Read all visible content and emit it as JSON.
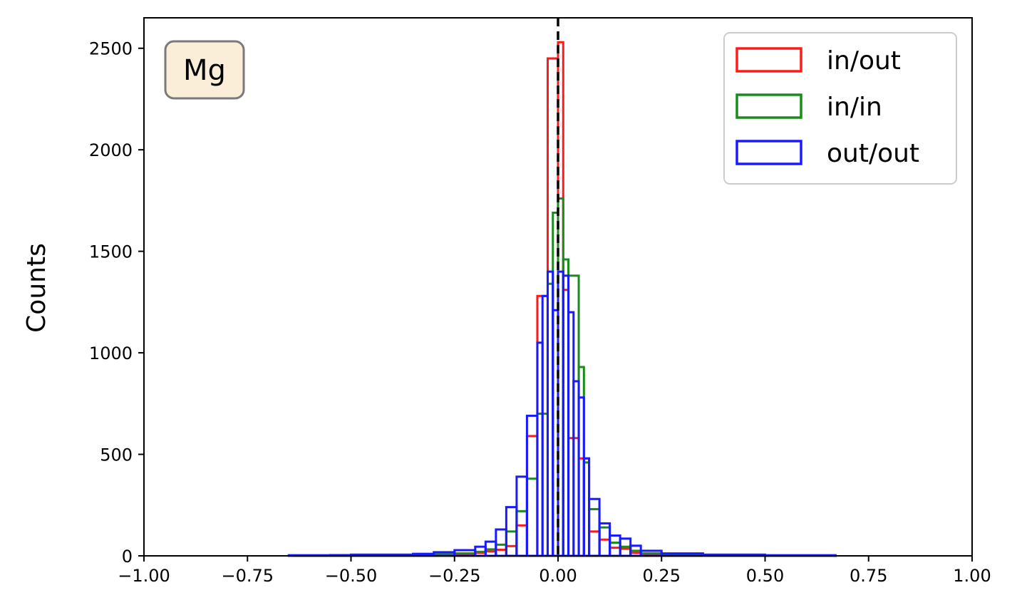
{
  "chart_data": {
    "type": "histogram",
    "xlabel": "",
    "ylabel": "Counts",
    "xlim": [
      -1.0,
      1.0
    ],
    "ylim": [
      0,
      2650
    ],
    "xticks": [
      "−1.00",
      "−0.75",
      "−0.50",
      "−0.25",
      "0.00",
      "0.25",
      "0.50",
      "0.75",
      "1.00"
    ],
    "xtick_values": [
      -1.0,
      -0.75,
      -0.5,
      -0.25,
      0.0,
      0.25,
      0.5,
      0.75,
      1.0
    ],
    "yticks": [
      "0",
      "500",
      "1000",
      "1500",
      "2000",
      "2500"
    ],
    "ytick_values": [
      0,
      500,
      1000,
      1500,
      2000,
      2500
    ],
    "annotation": "Mg",
    "reference_line": {
      "x": 0.0,
      "style": "dashed",
      "color": "#000000"
    },
    "legend_position": "top-right",
    "series": [
      {
        "name": "in/out",
        "color": "#ff1a1a",
        "bins": [
          [
            -0.65,
            -0.55,
            2
          ],
          [
            -0.55,
            -0.45,
            4
          ],
          [
            -0.45,
            -0.35,
            5
          ],
          [
            -0.35,
            -0.25,
            8
          ],
          [
            -0.25,
            -0.2,
            10
          ],
          [
            -0.2,
            -0.175,
            15
          ],
          [
            -0.175,
            -0.15,
            22
          ],
          [
            -0.15,
            -0.125,
            30
          ],
          [
            -0.125,
            -0.1,
            48
          ],
          [
            -0.1,
            -0.075,
            150
          ],
          [
            -0.075,
            -0.05,
            590
          ],
          [
            -0.05,
            -0.025,
            1280
          ],
          [
            -0.025,
            0,
            2450
          ],
          [
            0,
            0.0125,
            2530
          ],
          [
            0.0125,
            0.025,
            1310
          ],
          [
            0.025,
            0.05,
            580
          ],
          [
            0.05,
            0.075,
            480
          ],
          [
            0.075,
            0.1,
            120
          ],
          [
            0.1,
            0.125,
            80
          ],
          [
            0.125,
            0.15,
            40
          ],
          [
            0.15,
            0.175,
            35
          ],
          [
            0.175,
            0.2,
            15
          ],
          [
            0.2,
            0.25,
            8
          ],
          [
            0.25,
            0.35,
            5
          ],
          [
            0.35,
            0.5,
            3
          ],
          [
            0.5,
            0.67,
            2
          ]
        ]
      },
      {
        "name": "in/in",
        "color": "#1a8c1a",
        "bins": [
          [
            -0.65,
            -0.5,
            2
          ],
          [
            -0.5,
            -0.35,
            4
          ],
          [
            -0.35,
            -0.25,
            8
          ],
          [
            -0.25,
            -0.2,
            12
          ],
          [
            -0.2,
            -0.175,
            20
          ],
          [
            -0.175,
            -0.15,
            32
          ],
          [
            -0.15,
            -0.125,
            55
          ],
          [
            -0.125,
            -0.1,
            120
          ],
          [
            -0.1,
            -0.075,
            220
          ],
          [
            -0.075,
            -0.05,
            380
          ],
          [
            -0.05,
            -0.025,
            700
          ],
          [
            -0.025,
            -0.0125,
            1340
          ],
          [
            -0.0125,
            0,
            1690
          ],
          [
            0,
            0.0125,
            1760
          ],
          [
            0.0125,
            0.025,
            1460
          ],
          [
            0.025,
            0.05,
            1380
          ],
          [
            0.05,
            0.0625,
            930
          ],
          [
            0.0625,
            0.075,
            460
          ],
          [
            0.075,
            0.1,
            230
          ],
          [
            0.1,
            0.125,
            140
          ],
          [
            0.125,
            0.15,
            65
          ],
          [
            0.15,
            0.175,
            45
          ],
          [
            0.175,
            0.2,
            25
          ],
          [
            0.2,
            0.25,
            12
          ],
          [
            0.25,
            0.35,
            6
          ],
          [
            0.35,
            0.5,
            3
          ],
          [
            0.5,
            0.67,
            2
          ]
        ]
      },
      {
        "name": "out/out",
        "color": "#1a1aff",
        "bins": [
          [
            -0.65,
            -0.5,
            3
          ],
          [
            -0.5,
            -0.35,
            6
          ],
          [
            -0.35,
            -0.3,
            10
          ],
          [
            -0.3,
            -0.25,
            18
          ],
          [
            -0.25,
            -0.2,
            28
          ],
          [
            -0.2,
            -0.175,
            45
          ],
          [
            -0.175,
            -0.15,
            70
          ],
          [
            -0.15,
            -0.125,
            130
          ],
          [
            -0.125,
            -0.1,
            240
          ],
          [
            -0.1,
            -0.075,
            390
          ],
          [
            -0.075,
            -0.05,
            690
          ],
          [
            -0.05,
            -0.0375,
            1050
          ],
          [
            -0.0375,
            -0.025,
            1280
          ],
          [
            -0.025,
            -0.0125,
            1400
          ],
          [
            -0.0125,
            0,
            1210
          ],
          [
            0,
            0.0125,
            1400
          ],
          [
            0.0125,
            0.025,
            1380
          ],
          [
            0.025,
            0.0375,
            1200
          ],
          [
            0.0375,
            0.05,
            860
          ],
          [
            0.05,
            0.0625,
            780
          ],
          [
            0.0625,
            0.075,
            480
          ],
          [
            0.075,
            0.1,
            280
          ],
          [
            0.1,
            0.125,
            160
          ],
          [
            0.125,
            0.15,
            100
          ],
          [
            0.15,
            0.175,
            85
          ],
          [
            0.175,
            0.2,
            50
          ],
          [
            0.2,
            0.25,
            25
          ],
          [
            0.25,
            0.35,
            12
          ],
          [
            0.35,
            0.5,
            6
          ],
          [
            0.5,
            0.67,
            3
          ]
        ]
      }
    ]
  }
}
